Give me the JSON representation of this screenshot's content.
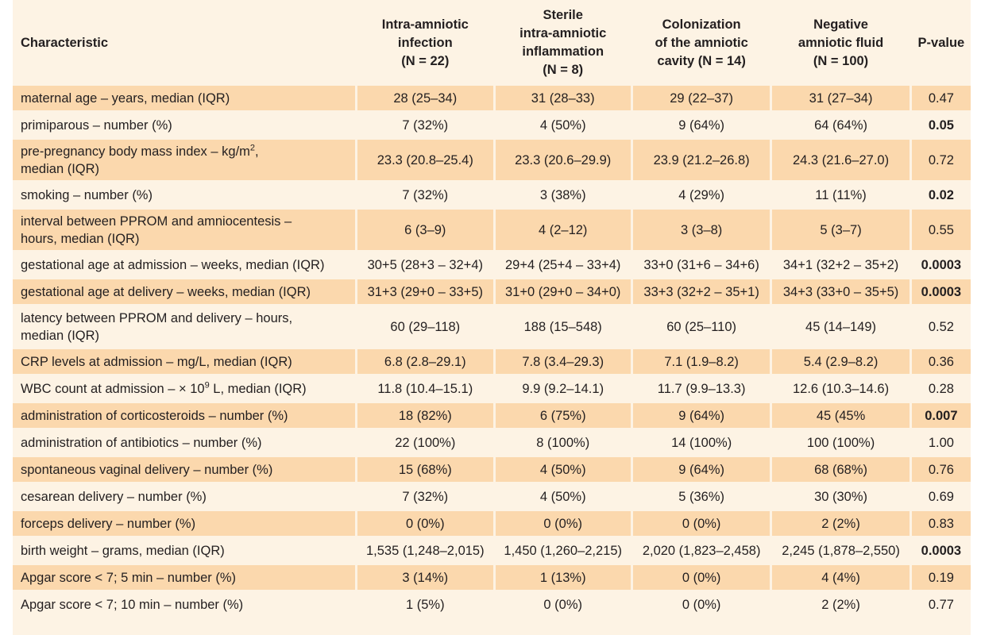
{
  "table": {
    "headers": {
      "characteristic": "Characteristic",
      "col1": [
        "Intra-amniotic",
        "infection",
        "(N = 22)"
      ],
      "col2": [
        "Sterile",
        "intra-amniotic",
        "inflammation",
        "(N = 8)"
      ],
      "col3": [
        "Colonization",
        "of the amniotic",
        "cavity (N = 14)"
      ],
      "col4": [
        "Negative",
        "amniotic fluid",
        "(N = 100)"
      ],
      "pvalue": "P-value"
    },
    "rows": [
      {
        "label": "maternal age – years, median (IQR)",
        "c1": "28 (25–34)",
        "c2": "31 (28–33)",
        "c3": "29 (22–37)",
        "c4": "31 (27–34)",
        "p": "0.47",
        "sig": false
      },
      {
        "label": "primiparous – number (%)",
        "c1": "7 (32%)",
        "c2": "4 (50%)",
        "c3": "9 (64%)",
        "c4": "64 (64%)",
        "p": "0.05",
        "sig": true
      },
      {
        "label_a": "pre-pregnancy body mass index – kg/m",
        "label_sup": "2",
        "label_b": ",",
        "label_c": "median (IQR)",
        "c1": "23.3 (20.8–25.4)",
        "c2": "23.3 (20.6–29.9)",
        "c3": "23.9 (21.2–26.8)",
        "c4": "24.3 (21.6–27.0)",
        "p": "0.72",
        "sig": false
      },
      {
        "label": "smoking – number (%)",
        "c1": "7 (32%)",
        "c2": "3 (38%)",
        "c3": "4 (29%)",
        "c4": "11 (11%)",
        "p": "0.02",
        "sig": true
      },
      {
        "label_a": "interval between PPROM and amniocentesis –",
        "label_c": "hours, median (IQR)",
        "c1": "6 (3–9)",
        "c2": "4 (2–12)",
        "c3": "3 (3–8)",
        "c4": "5 (3–7)",
        "p": "0.55",
        "sig": false
      },
      {
        "label": "gestational age at admission – weeks, median (IQR)",
        "c1": "30+5 (28+3 – 32+4)",
        "c2": "29+4 (25+4 – 33+4)",
        "c3": "33+0 (31+6 – 34+6)",
        "c4": "34+1 (32+2 – 35+2)",
        "p": "0.0003",
        "sig": true
      },
      {
        "label": "gestational age at delivery – weeks, median (IQR)",
        "c1": "31+3 (29+0 – 33+5)",
        "c2": "31+0 (29+0 – 34+0)",
        "c3": "33+3 (32+2 – 35+1)",
        "c4": "34+3 (33+0 – 35+5)",
        "p": "0.0003",
        "sig": true
      },
      {
        "label_a": "latency between PPROM and delivery – hours,",
        "label_c": "median (IQR)",
        "c1": "60 (29–118)",
        "c2": "188 (15–548)",
        "c3": "60 (25–110)",
        "c4": "45 (14–149)",
        "p": "0.52",
        "sig": false
      },
      {
        "label": "CRP levels at admission – mg/L, median (IQR)",
        "c1": "6.8 (2.8–29.1)",
        "c2": "7.8 (3.4–29.3)",
        "c3": "7.1 (1.9–8.2)",
        "c4": "5.4 (2.9–8.2)",
        "p": "0.36",
        "sig": false
      },
      {
        "label_a": "WBC count at admission – × 10",
        "label_sup": "9",
        "label_b": " L, median (IQR)",
        "c1": "11.8 (10.4–15.1)",
        "c2": "9.9 (9.2–14.1)",
        "c3": "11.7 (9.9–13.3)",
        "c4": "12.6 (10.3–14.6)",
        "p": "0.28",
        "sig": false
      },
      {
        "label": "administration of corticosteroids – number (%)",
        "c1": "18 (82%)",
        "c2": "6 (75%)",
        "c3": "9 (64%)",
        "c4": "45 (45%",
        "p": "0.007",
        "sig": true
      },
      {
        "label": "administration of antibiotics – number (%)",
        "c1": "22 (100%)",
        "c2": "8 (100%)",
        "c3": "14 (100%)",
        "c4": "100 (100%)",
        "p": "1.00",
        "sig": false
      },
      {
        "label": "spontaneous vaginal delivery – number (%)",
        "c1": "15 (68%)",
        "c2": "4 (50%)",
        "c3": "9 (64%)",
        "c4": "68 (68%)",
        "p": "0.76",
        "sig": false
      },
      {
        "label": "cesarean delivery – number (%)",
        "c1": "7 (32%)",
        "c2": "4 (50%)",
        "c3": "5 (36%)",
        "c4": "30 (30%)",
        "p": "0.69",
        "sig": false
      },
      {
        "label": "forceps delivery – number (%)",
        "c1": "0 (0%)",
        "c2": "0 (0%)",
        "c3": "0 (0%)",
        "c4": "2 (2%)",
        "p": "0.83",
        "sig": false
      },
      {
        "label": "birth weight – grams, median (IQR)",
        "c1": "1,535 (1,248–2,015)",
        "c2": "1,450 (1,260–2,215)",
        "c3": "2,020 (1,823–2,458)",
        "c4": "2,245 (1,878–2,550)",
        "p": "0.0003",
        "sig": true
      },
      {
        "label": "Apgar score < 7; 5 min – number (%)",
        "c1": "3 (14%)",
        "c2": "1 (13%)",
        "c3": "0 (0%)",
        "c4": "4 (4%)",
        "p": "0.19",
        "sig": false
      },
      {
        "label": "Apgar score < 7; 10 min – number (%)",
        "c1": "1 (5%)",
        "c2": "0 (0%)",
        "c3": "0 (0%)",
        "c4": "2 (2%)",
        "p": "0.77",
        "sig": false
      }
    ]
  },
  "colors": {
    "row_shade": "#fbd8ad",
    "background": "#fdf3e4",
    "text": "#231f20"
  }
}
